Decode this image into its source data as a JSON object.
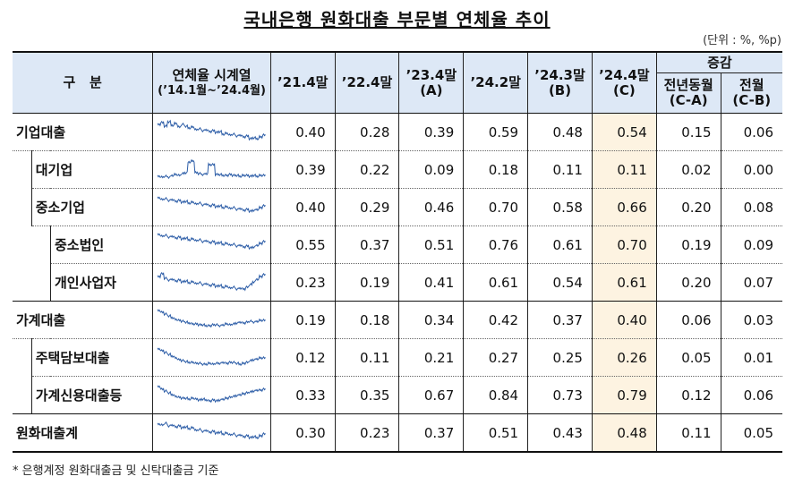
{
  "title": "국내은행 원화대출 부문별 연체율 추이",
  "unit": "(단위 : %, %p)",
  "headers": {
    "category": "구   분",
    "trend_line1": "연체율 시계열",
    "trend_line2": "(’14.1월~’24.4월)",
    "periods": [
      {
        "line1": "’21.4말",
        "line2": ""
      },
      {
        "line1": "’22.4말",
        "line2": ""
      },
      {
        "line1": "’23.4말",
        "line2": "(A)"
      },
      {
        "line1": "’24.2말",
        "line2": ""
      },
      {
        "line1": "’24.3말",
        "line2": "(B)"
      },
      {
        "line1": "’24.4말",
        "line2": "(C)"
      }
    ],
    "change_group": "증감",
    "change": [
      {
        "line1": "전년동월",
        "line2": "(C-A)"
      },
      {
        "line1": "전월",
        "line2": "(C-B)"
      }
    ]
  },
  "rows": [
    {
      "label": "기업대출",
      "level": 0,
      "values": [
        "0.40",
        "0.28",
        "0.39",
        "0.59",
        "0.48",
        "0.54"
      ],
      "changes": [
        "0.15",
        "0.06"
      ],
      "sparkline": "corporate"
    },
    {
      "label": "대기업",
      "level": 1,
      "values": [
        "0.39",
        "0.22",
        "0.09",
        "0.18",
        "0.11",
        "0.11"
      ],
      "changes": [
        "0.02",
        "0.00"
      ],
      "sparkline": "large_corp"
    },
    {
      "label": "중소기업",
      "level": 1,
      "values": [
        "0.40",
        "0.29",
        "0.46",
        "0.70",
        "0.58",
        "0.66"
      ],
      "changes": [
        "0.20",
        "0.08"
      ],
      "sparkline": "sme"
    },
    {
      "label": "중소법인",
      "level": 2,
      "values": [
        "0.55",
        "0.37",
        "0.51",
        "0.76",
        "0.61",
        "0.70"
      ],
      "changes": [
        "0.19",
        "0.09"
      ],
      "sparkline": "sme_corp"
    },
    {
      "label": "개인사업자",
      "level": 2,
      "values": [
        "0.23",
        "0.19",
        "0.41",
        "0.61",
        "0.54",
        "0.61"
      ],
      "changes": [
        "0.20",
        "0.07"
      ],
      "sparkline": "self_employed"
    },
    {
      "label": "가계대출",
      "level": 0,
      "values": [
        "0.19",
        "0.18",
        "0.34",
        "0.42",
        "0.37",
        "0.40"
      ],
      "changes": [
        "0.06",
        "0.03"
      ],
      "sparkline": "household"
    },
    {
      "label": "주택담보대출",
      "level": 1,
      "values": [
        "0.12",
        "0.11",
        "0.21",
        "0.27",
        "0.25",
        "0.26"
      ],
      "changes": [
        "0.05",
        "0.01"
      ],
      "sparkline": "mortgage"
    },
    {
      "label": "가계신용대출등",
      "level": 1,
      "values": [
        "0.33",
        "0.35",
        "0.67",
        "0.84",
        "0.73",
        "0.79"
      ],
      "changes": [
        "0.12",
        "0.06"
      ],
      "sparkline": "credit"
    },
    {
      "label": "원화대출계",
      "level": 0,
      "values": [
        "0.30",
        "0.23",
        "0.37",
        "0.51",
        "0.43",
        "0.48"
      ],
      "changes": [
        "0.11",
        "0.05"
      ],
      "sparkline": "total"
    }
  ],
  "note": "* 은행계정 원화대출금 및 신탁대출금 기준",
  "colors": {
    "header_bg": "#dde8f6",
    "highlight_bg": "#fdf3e1",
    "sparkline": "#2f5fa8"
  }
}
